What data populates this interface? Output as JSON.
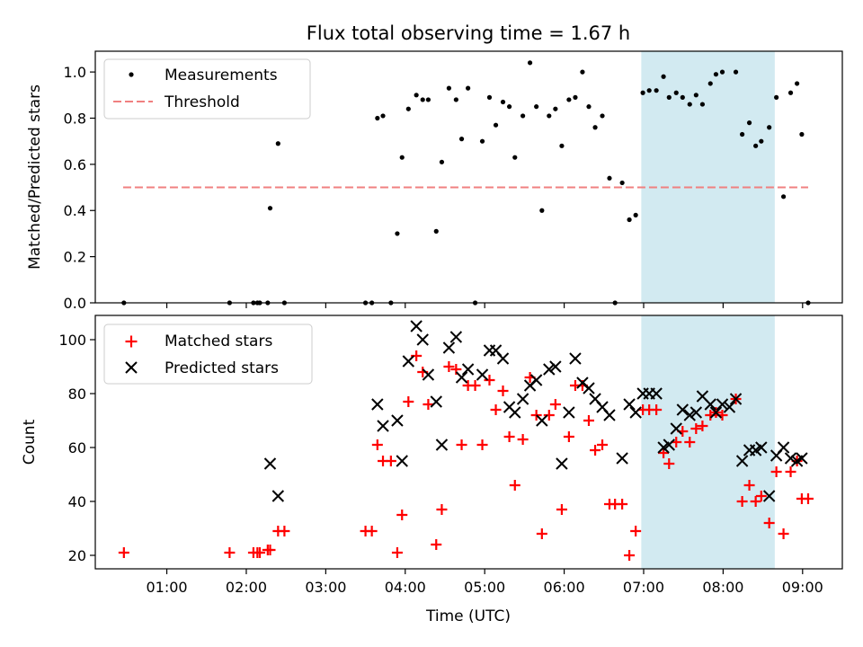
{
  "title": "Flux total observing time = 1.67 h",
  "colors": {
    "measurement": "#000000",
    "threshold": "#f08080",
    "matched": "#ff0000",
    "predicted": "#000000",
    "window": "#add8e6"
  },
  "chart_data": [
    {
      "type": "scatter",
      "title": "Flux total observing time = 1.67 h",
      "ylabel": "Matched/Predicted stars",
      "xlabel": "",
      "xlim_hours": [
        0.1,
        9.5
      ],
      "ylim": [
        0,
        1.09
      ],
      "yticks": [
        0.0,
        0.2,
        0.4,
        0.6,
        0.8,
        1.0
      ],
      "ytick_labels": [
        "0.0",
        "0.2",
        "0.4",
        "0.6",
        "0.8",
        "1.0"
      ],
      "observing_window_hours": [
        6.97,
        8.65
      ],
      "threshold": {
        "label": "Threshold",
        "value": 0.5,
        "x_start_hours": 0.45,
        "x_end_hours": 9.07
      },
      "legend": {
        "position": "upper-left",
        "entries": [
          "Measurements",
          "Threshold"
        ]
      },
      "series": [
        {
          "name": "Measurements",
          "x_hours": [
            0.46,
            1.79,
            2.09,
            2.14,
            2.17,
            2.27,
            2.3,
            2.4,
            2.48,
            3.5,
            3.58,
            3.65,
            3.72,
            3.82,
            3.9,
            3.96,
            4.04,
            4.14,
            4.22,
            4.29,
            4.39,
            4.46,
            4.55,
            4.64,
            4.71,
            4.79,
            4.88,
            4.97,
            5.06,
            5.14,
            5.23,
            5.31,
            5.38,
            5.48,
            5.57,
            5.65,
            5.72,
            5.81,
            5.89,
            5.97,
            6.06,
            6.14,
            6.23,
            6.31,
            6.39,
            6.48,
            6.57,
            6.64,
            6.73,
            6.82,
            6.9,
            6.99,
            7.07,
            7.16,
            7.25,
            7.32,
            7.41,
            7.49,
            7.58,
            7.66,
            7.74,
            7.84,
            7.91,
            7.99,
            8.16,
            8.24,
            8.33,
            8.41,
            8.48,
            8.58,
            8.67,
            8.76,
            8.85,
            8.93,
            8.99,
            9.07
          ],
          "y": [
            0.0,
            0.0,
            0.0,
            0.0,
            0.0,
            0.0,
            0.41,
            0.69,
            0.0,
            0.0,
            0.0,
            0.8,
            0.81,
            0.0,
            0.3,
            0.63,
            0.84,
            0.9,
            0.88,
            0.88,
            0.31,
            0.61,
            0.93,
            0.88,
            0.71,
            0.93,
            0.0,
            0.7,
            0.89,
            0.77,
            0.87,
            0.85,
            0.63,
            0.81,
            1.04,
            0.85,
            0.4,
            0.81,
            0.84,
            0.68,
            0.88,
            0.89,
            1.0,
            0.85,
            0.76,
            0.81,
            0.54,
            0.0,
            0.52,
            0.36,
            0.38,
            0.91,
            0.92,
            0.92,
            0.98,
            0.89,
            0.91,
            0.89,
            0.86,
            0.9,
            0.86,
            0.95,
            0.99,
            1.0,
            1.0,
            0.73,
            0.78,
            0.68,
            0.7,
            0.76,
            0.89,
            0.46,
            0.91,
            0.95,
            0.73,
            0.0
          ]
        }
      ]
    },
    {
      "type": "scatter",
      "title": "",
      "xlabel": "Time (UTC)",
      "ylabel": "Count",
      "xlim_hours": [
        0.1,
        9.5
      ],
      "ylim": [
        15,
        109
      ],
      "yticks": [
        20,
        40,
        60,
        80,
        100
      ],
      "ytick_labels": [
        "20",
        "40",
        "60",
        "80",
        "100"
      ],
      "xticks_hours": [
        1,
        2,
        3,
        4,
        5,
        6,
        7,
        8,
        9
      ],
      "xtick_labels": [
        "01:00",
        "02:00",
        "03:00",
        "04:00",
        "05:00",
        "06:00",
        "07:00",
        "08:00",
        "09:00"
      ],
      "observing_window_hours": [
        6.97,
        8.65
      ],
      "legend": {
        "position": "upper-left",
        "entries": [
          "Matched stars",
          "Predicted stars"
        ]
      },
      "series": [
        {
          "name": "Matched stars",
          "marker": "plus",
          "x_hours": [
            0.46,
            1.79,
            2.09,
            2.14,
            2.17,
            2.27,
            2.3,
            2.4,
            2.48,
            3.5,
            3.58,
            3.65,
            3.72,
            3.82,
            3.9,
            3.96,
            4.04,
            4.14,
            4.22,
            4.29,
            4.39,
            4.46,
            4.55,
            4.64,
            4.71,
            4.79,
            4.88,
            4.97,
            5.06,
            5.14,
            5.23,
            5.31,
            5.38,
            5.48,
            5.57,
            5.65,
            5.72,
            5.81,
            5.89,
            5.97,
            6.06,
            6.14,
            6.23,
            6.31,
            6.39,
            6.48,
            6.57,
            6.64,
            6.73,
            6.82,
            6.9,
            6.99,
            7.07,
            7.16,
            7.25,
            7.32,
            7.41,
            7.49,
            7.58,
            7.66,
            7.74,
            7.84,
            7.91,
            7.99,
            8.16,
            8.24,
            8.33,
            8.41,
            8.48,
            8.58,
            8.67,
            8.76,
            8.85,
            8.93,
            8.99,
            9.07
          ],
          "y": [
            21,
            21,
            21,
            21,
            21,
            22,
            22,
            29,
            29,
            29,
            29,
            61,
            55,
            55,
            21,
            35,
            77,
            94,
            88,
            76,
            24,
            37,
            90,
            89,
            61,
            83,
            83,
            61,
            85,
            74,
            81,
            64,
            46,
            63,
            86,
            72,
            28,
            72,
            76,
            37,
            64,
            83,
            83,
            70,
            59,
            61,
            39,
            39,
            39,
            20,
            29,
            74,
            74,
            74,
            58,
            54,
            62,
            66,
            62,
            67,
            68,
            72,
            73,
            72,
            78,
            40,
            46,
            40,
            42,
            32,
            51,
            28,
            51,
            55,
            41,
            41
          ]
        },
        {
          "name": "Predicted stars",
          "marker": "x",
          "x_hours": [
            2.3,
            2.4,
            3.65,
            3.72,
            3.9,
            3.96,
            4.04,
            4.14,
            4.22,
            4.29,
            4.39,
            4.46,
            4.55,
            4.64,
            4.71,
            4.79,
            4.97,
            5.06,
            5.14,
            5.23,
            5.31,
            5.38,
            5.48,
            5.57,
            5.65,
            5.72,
            5.81,
            5.89,
            5.97,
            6.06,
            6.14,
            6.23,
            6.31,
            6.39,
            6.48,
            6.57,
            6.73,
            6.82,
            6.9,
            6.99,
            7.07,
            7.16,
            7.25,
            7.32,
            7.41,
            7.49,
            7.58,
            7.66,
            7.74,
            7.84,
            7.91,
            7.99,
            8.08,
            8.16,
            8.24,
            8.33,
            8.41,
            8.48,
            8.58,
            8.67,
            8.76,
            8.85,
            8.93,
            8.99
          ],
          "y": [
            54,
            42,
            76,
            68,
            70,
            55,
            92,
            105,
            100,
            87,
            77,
            61,
            97,
            101,
            86,
            89,
            87,
            96,
            96,
            93,
            75,
            73,
            78,
            83,
            85,
            70,
            89,
            90,
            54,
            73,
            93,
            84,
            82,
            78,
            75,
            72,
            56,
            76,
            73,
            80,
            80,
            80,
            60,
            61,
            67,
            74,
            72,
            73,
            79,
            76,
            73,
            76,
            75,
            78,
            55,
            59,
            59,
            60,
            42,
            57,
            60,
            56,
            55,
            56
          ]
        }
      ]
    }
  ]
}
